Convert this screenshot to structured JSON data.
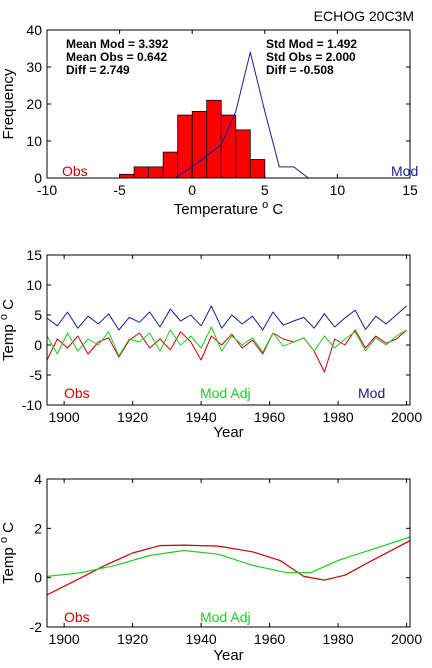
{
  "figure_title": "ECHOG 20C3M",
  "colors": {
    "obs": "#cc0000",
    "mod": "#1a1a99",
    "mod_adj": "#22cc22",
    "bar_fill": "#ff0000",
    "bar_edge": "#000000"
  },
  "chart_data": [
    {
      "id": "histogram",
      "type": "bar",
      "xlabel": "Temperature o C",
      "ylabel": "Frequency",
      "xlim": [
        -10,
        15
      ],
      "ylim": [
        0,
        40
      ],
      "xticks": [
        -10,
        -5,
        0,
        5,
        10,
        15
      ],
      "yticks": [
        0,
        10,
        20,
        30,
        40
      ],
      "bar_width": 1,
      "bars": {
        "name": "Obs",
        "x": [
          -4.5,
          -3.5,
          -2.5,
          -1.5,
          -0.5,
          0.5,
          1.5,
          2.5,
          3.5,
          4.5
        ],
        "values": [
          1,
          3,
          3,
          7,
          17,
          18,
          21,
          17,
          13,
          5
        ]
      },
      "line": {
        "name": "Mod",
        "x": [
          -1.2,
          0,
          1,
          2,
          3,
          4,
          5,
          6,
          7,
          8
        ],
        "values": [
          0,
          3,
          6,
          9,
          18,
          34,
          18,
          3,
          3,
          0
        ]
      },
      "stats_left": [
        "Mean Mod = 3.392",
        "Mean Obs = 0.642",
        "Diff = 2.749"
      ],
      "stats_right": [
        "Std Mod = 1.492",
        "Std Obs = 2.000",
        "Diff = -0.508"
      ],
      "legend": {
        "obs": "Obs",
        "mod": "Mod"
      }
    },
    {
      "id": "timeseries",
      "type": "line",
      "xlabel": "Year",
      "ylabel": "Temp o C",
      "xlim": [
        1895,
        2001
      ],
      "ylim": [
        -10,
        15
      ],
      "xticks": [
        1900,
        1920,
        1940,
        1960,
        1980,
        2000
      ],
      "yticks": [
        -10,
        -5,
        0,
        5,
        10,
        15
      ],
      "years": [
        1895,
        1898,
        1901,
        1904,
        1907,
        1910,
        1913,
        1916,
        1919,
        1922,
        1925,
        1928,
        1931,
        1934,
        1937,
        1940,
        1943,
        1946,
        1949,
        1952,
        1955,
        1958,
        1961,
        1964,
        1967,
        1970,
        1973,
        1976,
        1979,
        1982,
        1985,
        1988,
        1991,
        1994,
        1997,
        2000
      ],
      "series": [
        {
          "name": "Mod",
          "color_key": "mod",
          "values": [
            4.5,
            3.2,
            5.5,
            2.8,
            4.8,
            3.5,
            5.2,
            2.5,
            4.6,
            3.8,
            5.5,
            3.0,
            6.0,
            4.0,
            5.0,
            3.2,
            6.5,
            2.8,
            5.0,
            3.5,
            4.8,
            2.5,
            5.5,
            3.3,
            4.0,
            4.6,
            2.8,
            5.2,
            3.0,
            4.5,
            5.8,
            2.6,
            4.8,
            3.5,
            5.0,
            6.5
          ]
        },
        {
          "name": "Obs",
          "color_key": "obs",
          "values": [
            -2.5,
            1.0,
            -0.5,
            1.5,
            -1.5,
            0.5,
            1.2,
            -2.0,
            0.8,
            2.0,
            -0.5,
            1.0,
            -0.8,
            2.2,
            0.5,
            -2.5,
            1.5,
            0.0,
            1.8,
            -0.5,
            0.8,
            -1.5,
            2.0,
            1.0,
            0.5,
            1.2,
            -1.0,
            -4.5,
            1.0,
            0.0,
            2.5,
            -0.5,
            1.5,
            0.3,
            1.0,
            2.5
          ]
        },
        {
          "name": "Mod Adj",
          "color_key": "mod_adj",
          "values": [
            1.5,
            -1.5,
            2.0,
            -1.0,
            1.0,
            0.0,
            2.2,
            -1.8,
            1.0,
            0.5,
            2.0,
            -1.0,
            2.5,
            0.0,
            1.5,
            -0.5,
            3.0,
            -1.0,
            1.5,
            0.0,
            1.2,
            -1.2,
            2.0,
            -0.2,
            0.5,
            1.2,
            -1.0,
            1.5,
            -0.5,
            1.0,
            2.2,
            -1.0,
            1.2,
            0.0,
            1.5,
            2.5
          ]
        }
      ],
      "legend": {
        "obs": "Obs",
        "mod_adj": "Mod Adj",
        "mod": "Mod"
      }
    },
    {
      "id": "smoothed",
      "type": "line",
      "xlabel": "Year",
      "ylabel": "Temp o C",
      "xlim": [
        1895,
        2001
      ],
      "ylim": [
        -2,
        4
      ],
      "xticks": [
        1900,
        1920,
        1940,
        1960,
        1980,
        2000
      ],
      "yticks": [
        -2,
        0,
        2,
        4
      ],
      "series": [
        {
          "name": "Obs",
          "color_key": "obs",
          "x": [
            1895,
            1905,
            1912,
            1920,
            1928,
            1935,
            1945,
            1955,
            1963,
            1970,
            1976,
            1982,
            1990,
            2001
          ],
          "values": [
            -0.7,
            0.0,
            0.5,
            1.0,
            1.3,
            1.32,
            1.28,
            1.05,
            0.7,
            0.05,
            -0.1,
            0.1,
            0.7,
            1.5
          ]
        },
        {
          "name": "Mod Adj",
          "color_key": "mod_adj",
          "x": [
            1895,
            1905,
            1915,
            1925,
            1935,
            1945,
            1955,
            1965,
            1972,
            1980,
            1990,
            2001
          ],
          "values": [
            0.05,
            0.2,
            0.5,
            0.9,
            1.1,
            0.95,
            0.5,
            0.2,
            0.2,
            0.7,
            1.15,
            1.65
          ]
        }
      ],
      "legend": {
        "obs": "Obs",
        "mod_adj": "Mod Adj"
      }
    }
  ]
}
